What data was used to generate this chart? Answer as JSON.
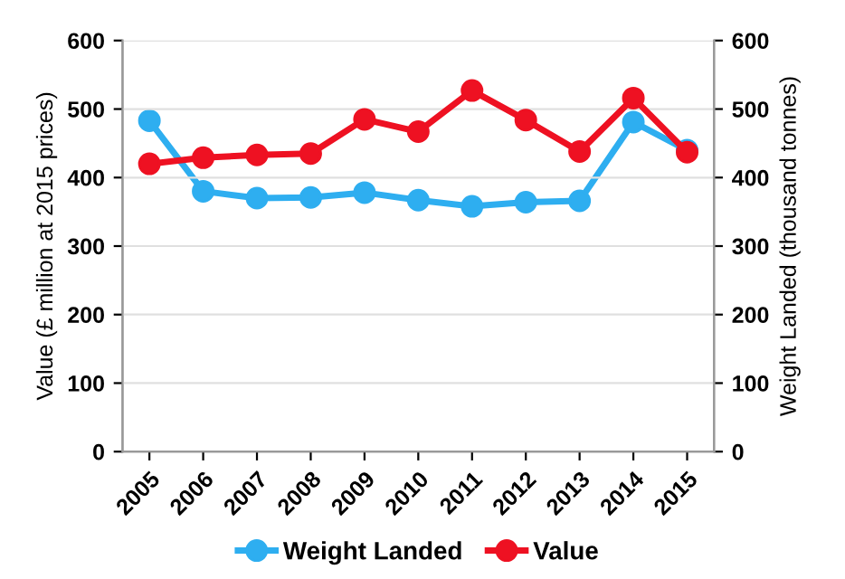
{
  "chart_data": {
    "type": "line",
    "categories": [
      "2005",
      "2006",
      "2007",
      "2008",
      "2009",
      "2010",
      "2011",
      "2012",
      "2013",
      "2014",
      "2015"
    ],
    "ylabel": "Value (£ million at 2015 prices)",
    "y2label": "Weight Landed (thousand tonnes)",
    "series": [
      {
        "name": "Weight Landed",
        "color": "#2eaef0",
        "axis": "y2",
        "values": [
          483,
          380,
          370,
          371,
          378,
          367,
          358,
          364,
          366,
          481,
          440
        ]
      },
      {
        "name": "Value",
        "color": "#ee1122",
        "values": [
          420,
          429,
          433,
          435,
          485,
          467,
          527,
          484,
          438,
          516,
          437
        ]
      }
    ],
    "ylim": [
      0,
      600
    ],
    "yticks": [
      0,
      100,
      200,
      300,
      400,
      500,
      600
    ],
    "y2lim": [
      0,
      600
    ],
    "y2ticks": [
      0,
      100,
      200,
      300,
      400,
      500,
      600
    ],
    "grid": "y",
    "legend": "bottom",
    "marker": "circle",
    "line_style": "solid"
  }
}
